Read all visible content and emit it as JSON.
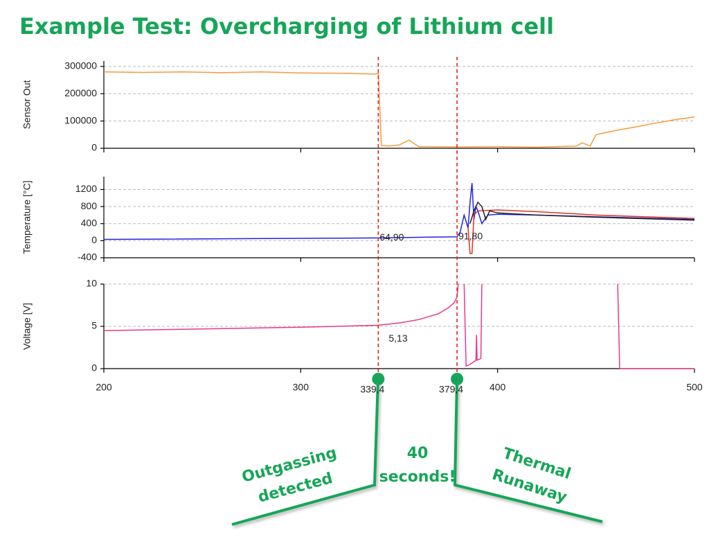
{
  "title": "Example Test: Overcharging of Lithium cell",
  "chart_data": [
    {
      "type": "line",
      "y_label": "Sensor Out",
      "xlim": [
        200,
        500
      ],
      "ylim": [
        0,
        320000
      ],
      "yticks": [
        0,
        100000,
        200000,
        300000
      ],
      "series": [
        {
          "color": "#f59a3c",
          "x": [
            200,
            220,
            240,
            260,
            280,
            300,
            320,
            338,
            339.4,
            341,
            345,
            350,
            355,
            360,
            380,
            400,
            420,
            440,
            443,
            447,
            450,
            460,
            470,
            480,
            490,
            500
          ],
          "values": [
            280000,
            278000,
            280000,
            277000,
            280000,
            276000,
            275000,
            272000,
            275000,
            10000,
            8000,
            12000,
            30000,
            6000,
            5000,
            6000,
            4000,
            8000,
            20000,
            8000,
            50000,
            65000,
            78000,
            92000,
            105000,
            115000
          ]
        }
      ]
    },
    {
      "type": "line",
      "y_label": "Temperature [°C]",
      "xlim": [
        200,
        500
      ],
      "ylim": [
        -400,
        1500
      ],
      "yticks": [
        -400,
        0,
        400,
        800,
        1200
      ],
      "series": [
        {
          "color": "#2222dd",
          "x": [
            200,
            339.4,
            379.4,
            381,
            383,
            385,
            386,
            387,
            388,
            389,
            390,
            392,
            395,
            400,
            420,
            450,
            500
          ],
          "values": [
            30,
            64.9,
            91.8,
            200,
            600,
            300,
            900,
            1350,
            500,
            800,
            700,
            400,
            600,
            620,
            600,
            560,
            500
          ]
        },
        {
          "color": "#e03020",
          "x": [
            385,
            386,
            387,
            388,
            390,
            400,
            420,
            450,
            500
          ],
          "values": [
            300,
            -300,
            -300,
            600,
            700,
            720,
            680,
            600,
            520
          ]
        },
        {
          "color": "#222222",
          "x": [
            386,
            388,
            390,
            392,
            394,
            396,
            400,
            420,
            450,
            500
          ],
          "values": [
            400,
            700,
            900,
            800,
            500,
            700,
            650,
            600,
            550,
            480
          ]
        }
      ],
      "point_labels": [
        {
          "x": 339.4,
          "value": 64.9,
          "label": "64,90"
        },
        {
          "x": 379.4,
          "value": 91.8,
          "label": "91,80"
        }
      ]
    },
    {
      "type": "line",
      "y_label": "Voltage [V]",
      "xlim": [
        200,
        500
      ],
      "ylim": [
        0,
        10
      ],
      "yticks": [
        0,
        5,
        10
      ],
      "xticks": [
        200,
        300,
        400,
        500
      ],
      "series": [
        {
          "color": "#e8388a",
          "x": [
            200,
            250,
            300,
            339.4,
            350,
            360,
            370,
            375,
            378,
            379.4,
            380,
            381,
            383,
            384,
            386,
            389,
            389.3,
            389.6,
            391.5,
            392,
            393,
            461,
            462,
            500
          ],
          "values": [
            4.5,
            4.7,
            4.9,
            5.13,
            5.4,
            5.8,
            6.5,
            7.2,
            7.8,
            8.5,
            10,
            null,
            10,
            0.3,
            0.5,
            1,
            4,
            1,
            1.2,
            10,
            null,
            10,
            0,
            0
          ]
        }
      ],
      "point_labels": [
        {
          "x": 339.4,
          "value": 5.13,
          "label": "5,13"
        }
      ]
    }
  ],
  "markers": [
    {
      "value": 339.4,
      "label": "339,4"
    },
    {
      "value": 379.4,
      "label": "379,4"
    }
  ],
  "callouts": [
    {
      "lines": [
        "Outgassing",
        "detected"
      ]
    },
    {
      "lines": [
        "40",
        "seconds!"
      ]
    },
    {
      "lines": [
        "Thermal",
        "Runaway"
      ]
    }
  ]
}
